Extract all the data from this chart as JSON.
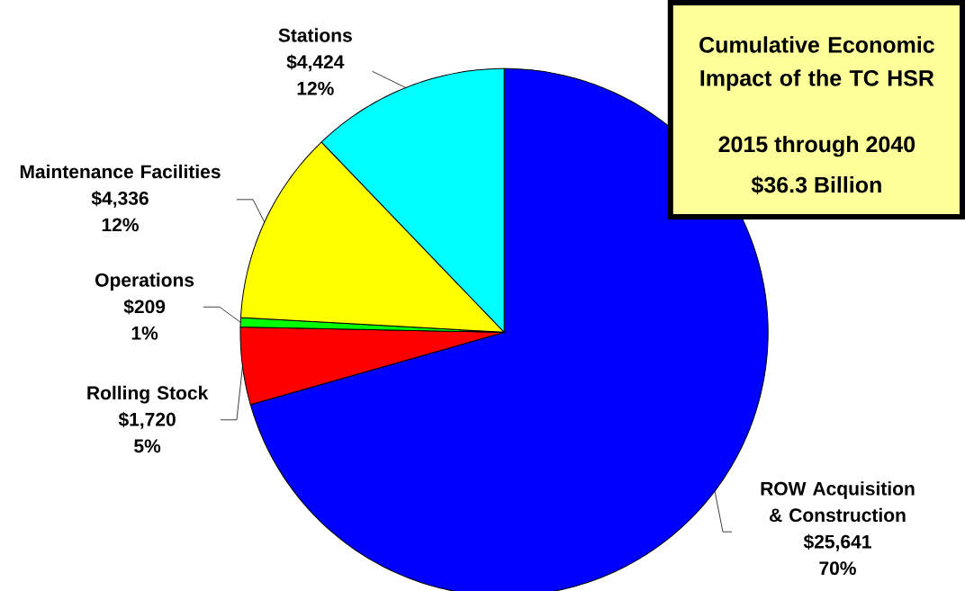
{
  "chart_data": {
    "type": "pie",
    "title": "Cumulative Economic Impact of the TC HSR",
    "subtitle": "2015 through 2040",
    "categories": [
      "ROW Acquisition & Construction",
      "Rolling Stock",
      "Operations",
      "Maintenance Facilities",
      "Stations"
    ],
    "values": [
      25641,
      1720,
      209,
      4336,
      4424
    ],
    "colors": [
      "#0000ff",
      "#ff0000",
      "#00ff00",
      "#ffff00",
      "#00ffff"
    ],
    "value_labels": [
      "$25,641",
      "$1,720",
      "$209",
      "$4,336",
      "$4,424"
    ],
    "annotations": [
      "$36.3 Billion",
      {
        "text": "70%",
        "x": "ROW Acquisition & Construction"
      },
      {
        "text": "5%",
        "x": "Rolling Stock"
      },
      {
        "text": "1%",
        "x": "Operations"
      },
      {
        "text": "12%",
        "x": "Maintenance Facilities"
      },
      {
        "text": "12%",
        "x": "Stations"
      }
    ]
  }
}
